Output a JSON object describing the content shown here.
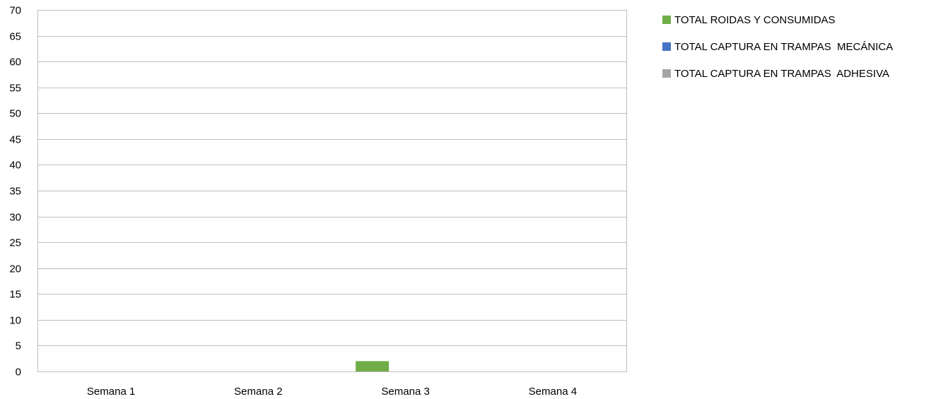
{
  "chart_data": {
    "type": "bar",
    "categories": [
      "Semana 1",
      "Semana 2",
      "Semana 3",
      "Semana 4"
    ],
    "series": [
      {
        "name": "TOTAL ROIDAS Y CONSUMIDAS",
        "color": "#70AD47",
        "values": [
          0,
          0,
          2,
          0
        ]
      },
      {
        "name": "TOTAL CAPTURA EN TRAMPAS  MECÁNICA",
        "color": "#4472C4",
        "values": [
          0,
          0,
          0,
          0
        ]
      },
      {
        "name": "TOTAL CAPTURA EN TRAMPAS  ADHESIVA",
        "color": "#A5A5A5",
        "values": [
          0,
          0,
          0,
          0
        ]
      }
    ],
    "ylim": [
      0,
      70
    ],
    "yticks": [
      0,
      5,
      10,
      15,
      20,
      25,
      30,
      35,
      40,
      45,
      50,
      55,
      60,
      65,
      70
    ],
    "grid": true,
    "legend_position": "right"
  }
}
